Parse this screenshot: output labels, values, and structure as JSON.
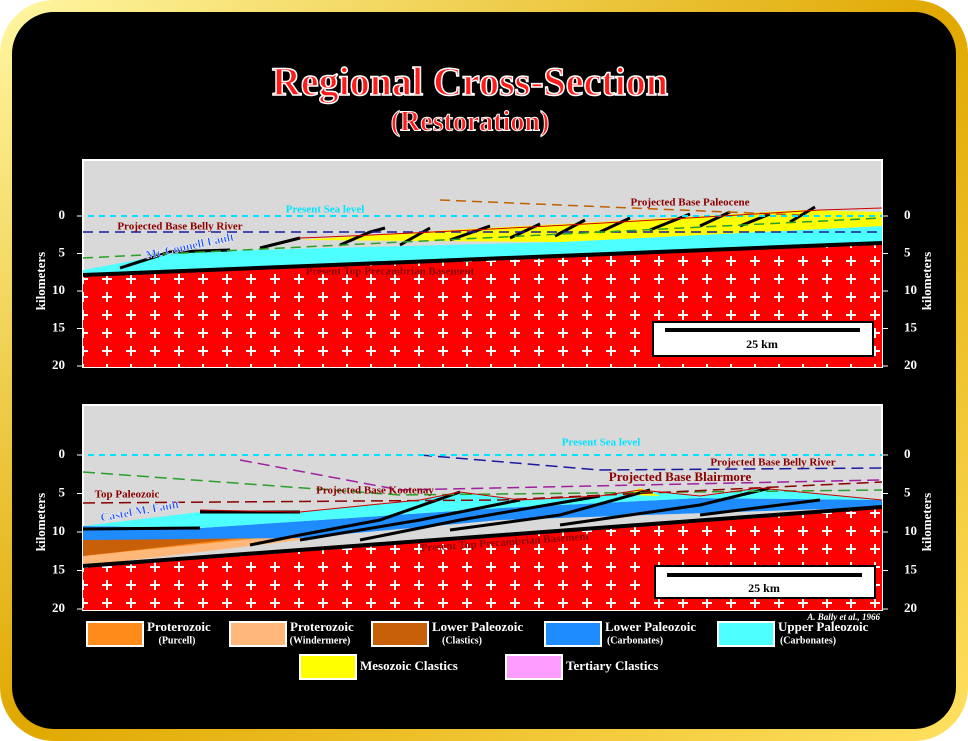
{
  "title": "Regional Cross-Section",
  "subtitle": "(Restoration)",
  "panels": [
    {
      "axis_label": "kilometers",
      "ticks": [
        0,
        5,
        10,
        15,
        20
      ],
      "scale_bar": "25 km",
      "labels": [
        "Present Sea level",
        "Projected Base Paleocene",
        "Projected Base Belly River",
        "Mc Connell Fault",
        "Present Top Precambrian Basement"
      ]
    },
    {
      "axis_label": "kilometers",
      "ticks": [
        0,
        5,
        10,
        15,
        20
      ],
      "scale_bar": "25 km",
      "labels": [
        "Present Sea level",
        "Projected Base Belly River",
        "Top Paleozoic",
        "Castel M. Fault",
        "Projected Base Kootenay",
        "Projected Base Blairmore",
        "Present Top Precambrian Basement"
      ]
    }
  ],
  "credit": "A. Bally et al., 1966",
  "legend": [
    {
      "name": "Proterozoic",
      "detail": "(Purcell)",
      "color": "#ff8c1a"
    },
    {
      "name": "Proterozoic",
      "detail": "(Windermere)",
      "color": "#ffb87a"
    },
    {
      "name": "Lower Paleozoic",
      "detail": "(Clastics)",
      "color": "#c8600a"
    },
    {
      "name": "Lower Paleozoic",
      "detail": "(Carbonates)",
      "color": "#1e8cff"
    },
    {
      "name": "Upper Paleozoic",
      "detail": "(Carbonates)",
      "color": "#4dffff"
    },
    {
      "name": "Mesozoic Clastics",
      "color": "#ffff00"
    },
    {
      "name": "Tertiary Clastics",
      "color": "#ff9cff"
    }
  ]
}
